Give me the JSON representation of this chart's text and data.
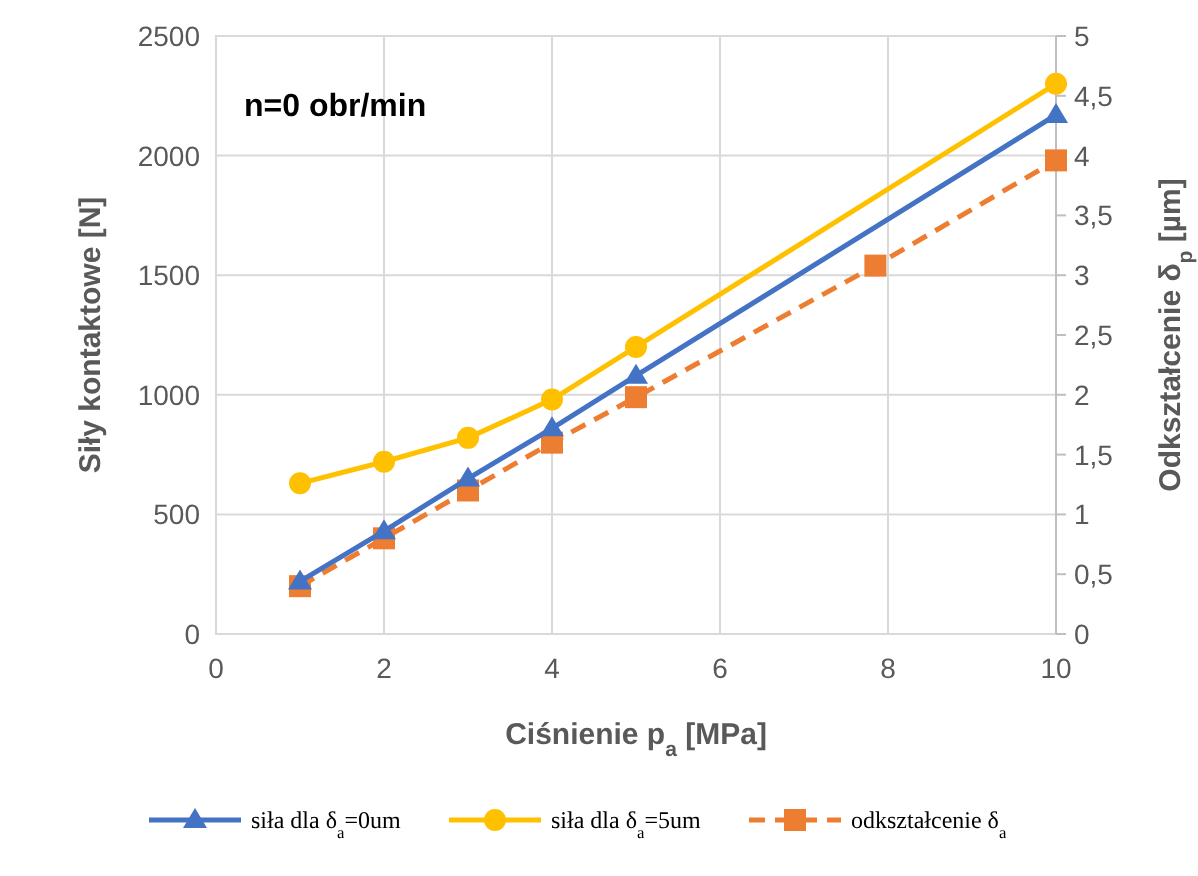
{
  "chart_data": {
    "type": "line",
    "xlabel": "Ciśnienie p$_{a}$ [MPa]",
    "ylabel": "Siły kontaktowe [N]",
    "y2label": "Odkształcenie δ$_{p}$ [µm]",
    "annotations": [
      "n=0 obr/min"
    ],
    "xlim": [
      0,
      10
    ],
    "xticks": [
      0,
      2,
      4,
      6,
      8,
      10
    ],
    "ylim": [
      0,
      2500
    ],
    "yticks": [
      0,
      500,
      1000,
      1500,
      2000,
      2500
    ],
    "y2lim": [
      0,
      5
    ],
    "y2ticks": [
      0,
      {
        "value": 0.5,
        "label": "0,5"
      },
      1,
      {
        "value": 1.5,
        "label": "1,5"
      },
      2,
      {
        "value": 2.5,
        "label": "2,5"
      },
      3,
      {
        "value": 3.5,
        "label": "3,5"
      },
      4,
      {
        "value": 4.5,
        "label": "4,5"
      },
      5
    ],
    "grid": true,
    "legend": "bottom",
    "series": [
      {
        "name": "siła dla δ$_{a}$=0um",
        "color": "#4472c4",
        "x": [
          1,
          2,
          3,
          4,
          5,
          10
        ],
        "values": [
          220,
          430,
          650,
          860,
          1080,
          2170
        ],
        "marker": "triangle",
        "line_style": "solid"
      },
      {
        "name": "siła dla δ$_{a}$=5um",
        "color": "#ffc000",
        "x": [
          1,
          2,
          3,
          4,
          5,
          10
        ],
        "values": [
          630,
          720,
          820,
          980,
          1200,
          2300
        ],
        "marker": "circle",
        "line_style": "solid"
      },
      {
        "name": "odkształcenie δ$_{a}$",
        "color": "#ed7d31",
        "axis": "y2",
        "x": [
          1,
          2,
          3,
          4,
          5,
          7.85,
          10
        ],
        "values": [
          0.4,
          0.8,
          1.2,
          1.6,
          1.98,
          3.08,
          3.96
        ],
        "marker": "square",
        "line_style": "dashed"
      }
    ]
  }
}
